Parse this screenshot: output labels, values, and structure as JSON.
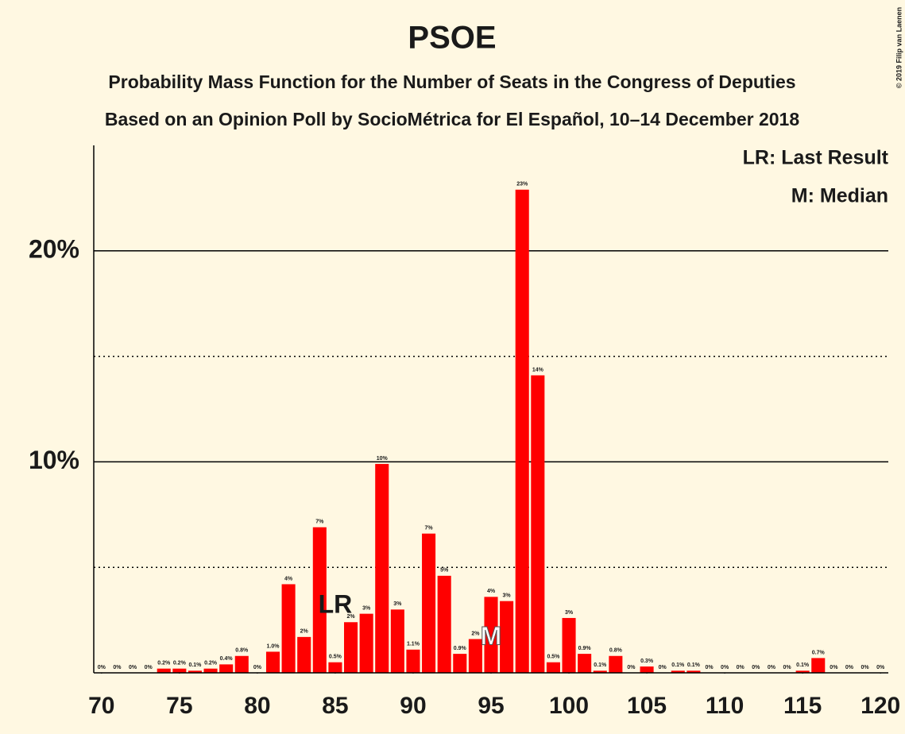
{
  "chart_data": {
    "type": "bar",
    "title": "PSOE",
    "subtitle": "Probability Mass Function for the Number of Seats in the Congress of Deputies",
    "subtitle2": "Based on an Opinion Poll by SocioMétrica for El Español, 10–14 December 2018",
    "credit": "© 2019 Filip van Laenen",
    "legend": [
      "LR: Last Result",
      "M: Median"
    ],
    "annotations": [
      {
        "text": "LR",
        "x": 85
      },
      {
        "text": "M",
        "x": 95
      }
    ],
    "x": [
      70,
      71,
      72,
      73,
      74,
      75,
      76,
      77,
      78,
      79,
      80,
      81,
      82,
      83,
      84,
      85,
      86,
      87,
      88,
      89,
      90,
      91,
      92,
      93,
      94,
      95,
      96,
      97,
      98,
      99,
      100,
      101,
      102,
      103,
      104,
      105,
      106,
      107,
      108,
      109,
      110,
      111,
      112,
      113,
      114,
      115,
      116,
      117,
      118,
      119,
      120
    ],
    "values": [
      0,
      0,
      0,
      0,
      0.2,
      0.2,
      0.1,
      0.2,
      0.4,
      0.8,
      0,
      1.0,
      4.2,
      1.7,
      6.9,
      0.5,
      2.4,
      2.8,
      9.9,
      3.0,
      1.1,
      6.6,
      4.6,
      0.9,
      1.6,
      3.6,
      3.4,
      22.9,
      14.1,
      0.5,
      2.6,
      0.9,
      0.1,
      0.8,
      0,
      0.3,
      0,
      0.1,
      0.1,
      0,
      0,
      0,
      0,
      0,
      0,
      0.1,
      0.7,
      0,
      0,
      0,
      0
    ],
    "value_labels": [
      "0%",
      "0%",
      "0%",
      "0%",
      "0.2%",
      "0.2%",
      "0.1%",
      "0.2%",
      "0.4%",
      "0.8%",
      "0%",
      "1.0%",
      "4%",
      "2%",
      "7%",
      "0.5%",
      "2%",
      "3%",
      "10%",
      "3%",
      "1.1%",
      "7%",
      "5%",
      "0.9%",
      "2%",
      "4%",
      "3%",
      "23%",
      "14%",
      "0.5%",
      "3%",
      "0.9%",
      "0.1%",
      "0.8%",
      "0%",
      "0.3%",
      "0%",
      "0.1%",
      "0.1%",
      "0%",
      "0%",
      "0%",
      "0%",
      "0%",
      "0%",
      "0.1%",
      "0.7%",
      "0%",
      "0%",
      "0%",
      "0%"
    ],
    "color": "#ff0000",
    "xlim": [
      69.5,
      120.5
    ],
    "xticks": [
      70,
      75,
      80,
      85,
      90,
      95,
      100,
      105,
      110,
      115,
      120
    ],
    "ylim": [
      0,
      25
    ],
    "yticks": [
      {
        "value": 10,
        "label": "10%"
      },
      {
        "value": 20,
        "label": "20%"
      }
    ],
    "minor_yticks": [
      5,
      15
    ],
    "grid": true
  }
}
